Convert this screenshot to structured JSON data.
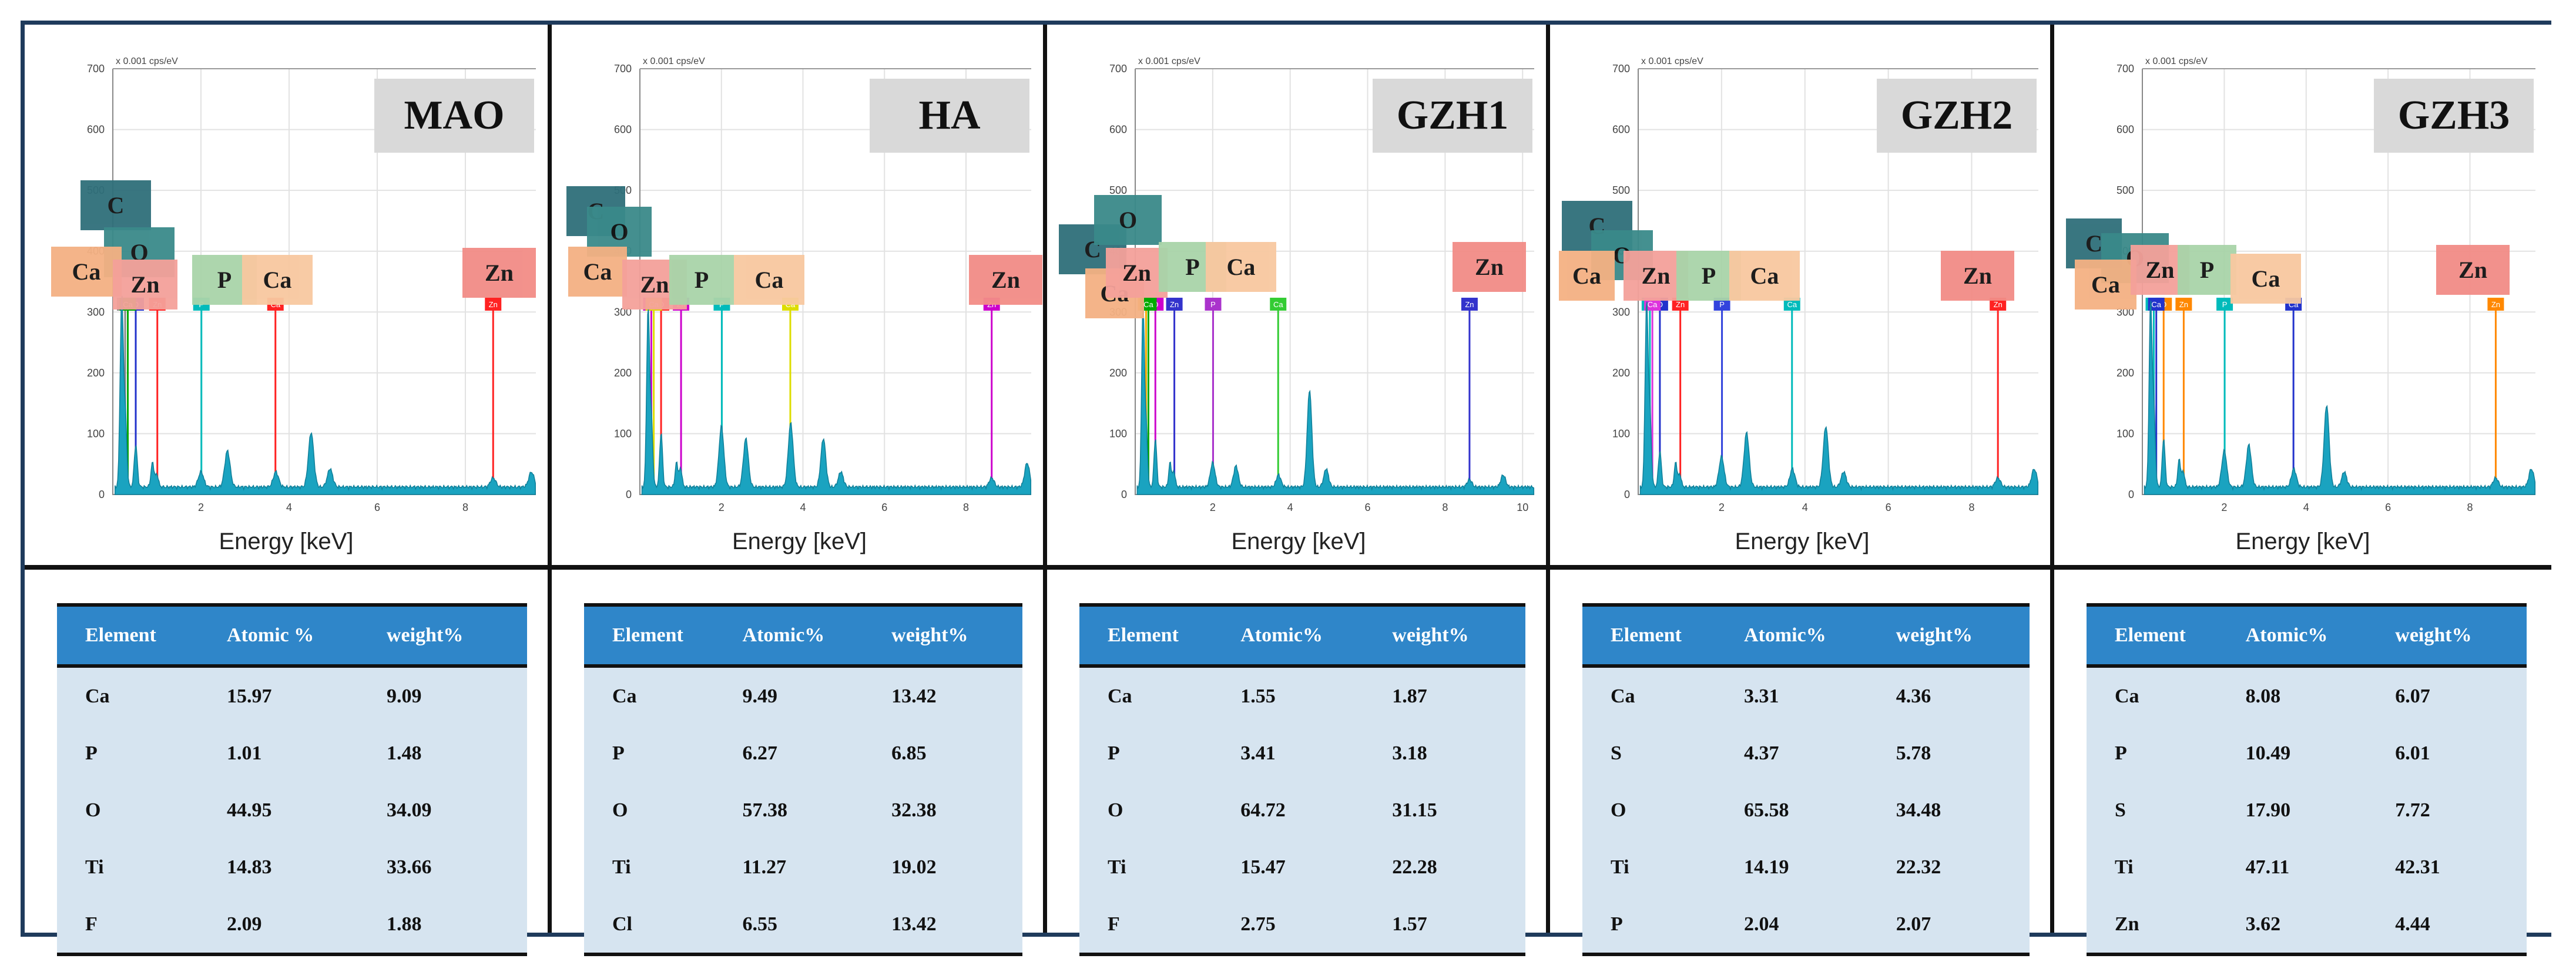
{
  "colors": {
    "frame": "#1f3b5c",
    "header": "#2f86c9",
    "cell": "#d6e4f0",
    "spectrum": "#1aa3c0"
  },
  "chart_data": [
    {
      "type": "area",
      "title": "MAO",
      "xlabel": "Energy [keV]",
      "ylabel": "x 0.001 cps/eV",
      "xlim": [
        0,
        9.6
      ],
      "ylim": [
        0,
        700
      ],
      "yticks": [
        0,
        100,
        200,
        300,
        400,
        500,
        600,
        700
      ],
      "xticks": [
        2,
        4,
        6,
        8
      ],
      "series": [
        {
          "name": "spectrum",
          "x": [
            0.2,
            0.28,
            0.52,
            0.9,
            1.0,
            2.0,
            2.6,
            3.7,
            4.5,
            4.93,
            8.63,
            9.5
          ],
          "y": [
            310,
            120,
            70,
            40,
            20,
            25,
            60,
            25,
            90,
            30,
            15,
            25
          ]
        }
      ],
      "markers": [
        {
          "label": "C",
          "energy": 0.28,
          "color": "#888888"
        },
        {
          "label": "O",
          "energy": 0.52,
          "color": "#2233cc"
        },
        {
          "label": "Ca",
          "energy": 0.34,
          "color": "#00aa00"
        },
        {
          "label": "Zn",
          "energy": 1.01,
          "color": "#ff2222"
        },
        {
          "label": "P",
          "energy": 2.01,
          "color": "#00bbbb"
        },
        {
          "label": "Ca",
          "energy": 3.69,
          "color": "#ff2222"
        },
        {
          "label": "Zn",
          "energy": 8.63,
          "color": "#ff2222"
        }
      ],
      "element_boxes": [
        {
          "label": "C",
          "color": "#2f6f7a"
        },
        {
          "label": "O",
          "color": "#3a8a8a"
        },
        {
          "label": "Ca",
          "color": "#f4b183"
        },
        {
          "label": "Zn",
          "color": "#f4a19a"
        },
        {
          "label": "P",
          "color": "#a9d4a9"
        },
        {
          "label": "Ca",
          "color": "#f8c8a0"
        },
        {
          "label": "Zn",
          "color": "#f28c86"
        }
      ]
    },
    {
      "type": "area",
      "title": "HA",
      "xlabel": "Energy [keV]",
      "ylabel": "x 0.001 cps/eV",
      "xlim": [
        0,
        9.6
      ],
      "ylim": [
        0,
        700
      ],
      "yticks": [
        0,
        100,
        200,
        300,
        400,
        500,
        600,
        700
      ],
      "xticks": [
        2,
        4,
        6,
        8
      ],
      "series": [
        {
          "name": "spectrum",
          "x": [
            0.2,
            0.28,
            0.52,
            0.9,
            1.0,
            2.0,
            2.6,
            3.7,
            4.5,
            4.93,
            8.63,
            9.5
          ],
          "y": [
            290,
            110,
            90,
            40,
            30,
            100,
            80,
            105,
            80,
            25,
            15,
            40
          ]
        }
      ],
      "markers": [
        {
          "label": "C",
          "energy": 0.28,
          "color": "#cc00cc"
        },
        {
          "label": "O",
          "energy": 0.52,
          "color": "#ff2222"
        },
        {
          "label": "Ca",
          "energy": 0.34,
          "color": "#dddd00"
        },
        {
          "label": "Zn",
          "energy": 1.01,
          "color": "#cc00cc"
        },
        {
          "label": "P",
          "energy": 2.01,
          "color": "#00bbbb"
        },
        {
          "label": "Ca",
          "energy": 3.69,
          "color": "#dddd00"
        },
        {
          "label": "Zn",
          "energy": 8.63,
          "color": "#cc00cc"
        }
      ],
      "element_boxes": [
        {
          "label": "C",
          "color": "#2f6f7a"
        },
        {
          "label": "O",
          "color": "#3a8a8a"
        },
        {
          "label": "Ca",
          "color": "#f4b183"
        },
        {
          "label": "Zn",
          "color": "#f4a19a"
        },
        {
          "label": "P",
          "color": "#a9d4a9"
        },
        {
          "label": "Ca",
          "color": "#f8c8a0"
        },
        {
          "label": "Zn",
          "color": "#f28c86"
        }
      ]
    },
    {
      "type": "area",
      "title": "GZH1",
      "xlabel": "Energy [keV]",
      "ylabel": "x 0.001 cps/eV",
      "xlim": [
        0,
        10.3
      ],
      "ylim": [
        0,
        700
      ],
      "yticks": [
        0,
        100,
        200,
        300,
        400,
        500,
        600,
        700
      ],
      "xticks": [
        2,
        4,
        6,
        8,
        10
      ],
      "series": [
        {
          "name": "spectrum",
          "x": [
            0.2,
            0.28,
            0.52,
            0.9,
            1.0,
            2.0,
            2.6,
            3.7,
            4.5,
            4.93,
            8.63,
            9.5
          ],
          "y": [
            300,
            100,
            80,
            40,
            25,
            40,
            35,
            20,
            160,
            30,
            12,
            20
          ]
        }
      ],
      "markers": [
        {
          "label": "C",
          "energy": 0.28,
          "color": "#ffaa00"
        },
        {
          "label": "O",
          "energy": 0.52,
          "color": "#cc00cc"
        },
        {
          "label": "Ca",
          "energy": 0.34,
          "color": "#00aa00"
        },
        {
          "label": "Zn",
          "energy": 1.01,
          "color": "#3333cc"
        },
        {
          "label": "P",
          "energy": 2.01,
          "color": "#aa33cc"
        },
        {
          "label": "Ca",
          "energy": 3.69,
          "color": "#33cc33"
        },
        {
          "label": "Zn",
          "energy": 8.63,
          "color": "#3333cc"
        }
      ],
      "element_boxes": [
        {
          "label": "C",
          "color": "#2f6f7a"
        },
        {
          "label": "O",
          "color": "#3a8a8a"
        },
        {
          "label": "Ca",
          "color": "#f4b183"
        },
        {
          "label": "Zn",
          "color": "#f4a19a"
        },
        {
          "label": "P",
          "color": "#a9d4a9"
        },
        {
          "label": "Ca",
          "color": "#f8c8a0"
        },
        {
          "label": "Zn",
          "color": "#f28c86"
        }
      ]
    },
    {
      "type": "area",
      "title": "GZH2",
      "xlabel": "Energy [keV]",
      "ylabel": "x 0.001 cps/eV",
      "xlim": [
        0,
        9.6
      ],
      "ylim": [
        0,
        700
      ],
      "yticks": [
        0,
        100,
        200,
        300,
        400,
        500,
        600,
        700
      ],
      "xticks": [
        2,
        4,
        6,
        8
      ],
      "series": [
        {
          "name": "spectrum",
          "x": [
            0.2,
            0.28,
            0.52,
            0.9,
            1.0,
            2.0,
            2.6,
            3.7,
            4.5,
            4.93,
            8.63,
            9.5
          ],
          "y": [
            300,
            120,
            60,
            40,
            20,
            50,
            90,
            30,
            100,
            25,
            15,
            30
          ]
        }
      ],
      "markers": [
        {
          "label": "C",
          "energy": 0.28,
          "color": "#00bbbb"
        },
        {
          "label": "O",
          "energy": 0.52,
          "color": "#2233cc"
        },
        {
          "label": "Ca",
          "energy": 0.34,
          "color": "#dd33dd"
        },
        {
          "label": "Zn",
          "energy": 1.01,
          "color": "#ff2222"
        },
        {
          "label": "P",
          "energy": 2.01,
          "color": "#3344dd"
        },
        {
          "label": "Ca",
          "energy": 3.69,
          "color": "#00bbbb"
        },
        {
          "label": "Zn",
          "energy": 8.63,
          "color": "#ff2222"
        }
      ],
      "element_boxes": [
        {
          "label": "C",
          "color": "#2f6f7a"
        },
        {
          "label": "O",
          "color": "#3a8a8a"
        },
        {
          "label": "Ca",
          "color": "#f4b183"
        },
        {
          "label": "Zn",
          "color": "#f4a19a"
        },
        {
          "label": "P",
          "color": "#a9d4a9"
        },
        {
          "label": "Ca",
          "color": "#f8c8a0"
        },
        {
          "label": "Zn",
          "color": "#f28c86"
        }
      ]
    },
    {
      "type": "area",
      "title": "GZH3",
      "xlabel": "Energy [keV]",
      "ylabel": "x 0.001 cps/eV",
      "xlim": [
        0,
        9.6
      ],
      "ylim": [
        0,
        700
      ],
      "yticks": [
        0,
        100,
        200,
        300,
        400,
        500,
        600,
        700
      ],
      "xticks": [
        2,
        4,
        6,
        8
      ],
      "series": [
        {
          "name": "spectrum",
          "x": [
            0.2,
            0.28,
            0.52,
            0.9,
            1.0,
            2.0,
            2.6,
            3.7,
            4.5,
            4.93,
            8.63,
            9.5
          ],
          "y": [
            300,
            130,
            80,
            45,
            25,
            60,
            70,
            30,
            135,
            25,
            15,
            30
          ]
        }
      ],
      "markers": [
        {
          "label": "C",
          "energy": 0.28,
          "color": "#00bbbb"
        },
        {
          "label": "O",
          "energy": 0.52,
          "color": "#ff8800"
        },
        {
          "label": "Ca",
          "energy": 0.34,
          "color": "#2233cc"
        },
        {
          "label": "Zn",
          "energy": 1.01,
          "color": "#ff8800"
        },
        {
          "label": "P",
          "energy": 2.01,
          "color": "#00bbbb"
        },
        {
          "label": "Ca",
          "energy": 3.69,
          "color": "#2233cc"
        },
        {
          "label": "Zn",
          "energy": 8.63,
          "color": "#ff8800"
        }
      ],
      "element_boxes": [
        {
          "label": "C",
          "color": "#2f6f7a"
        },
        {
          "label": "O",
          "color": "#3a8a8a"
        },
        {
          "label": "Ca",
          "color": "#f4b183"
        },
        {
          "label": "Zn",
          "color": "#f4a19a"
        },
        {
          "label": "P",
          "color": "#a9d4a9"
        },
        {
          "label": "Ca",
          "color": "#f8c8a0"
        },
        {
          "label": "Zn",
          "color": "#f28c86"
        }
      ]
    }
  ],
  "tables": [
    {
      "headers": [
        "Element",
        "Atomic %",
        "weight%"
      ],
      "rows": [
        [
          "Ca",
          "15.97",
          "9.09"
        ],
        [
          "P",
          "1.01",
          "1.48"
        ],
        [
          "O",
          "44.95",
          "34.09"
        ],
        [
          "Ti",
          "14.83",
          "33.66"
        ],
        [
          "F",
          "2.09",
          "1.88"
        ]
      ]
    },
    {
      "headers": [
        "Element",
        "Atomic%",
        "weight%"
      ],
      "rows": [
        [
          "Ca",
          "9.49",
          "13.42"
        ],
        [
          "P",
          "6.27",
          "6.85"
        ],
        [
          "O",
          "57.38",
          "32.38"
        ],
        [
          "Ti",
          "11.27",
          "19.02"
        ],
        [
          "Cl",
          "6.55",
          "13.42"
        ]
      ]
    },
    {
      "headers": [
        "Element",
        "Atomic%",
        "weight%"
      ],
      "rows": [
        [
          "Ca",
          "1.55",
          "1.87"
        ],
        [
          "P",
          "3.41",
          "3.18"
        ],
        [
          "O",
          "64.72",
          "31.15"
        ],
        [
          "Ti",
          "15.47",
          "22.28"
        ],
        [
          "F",
          "2.75",
          "1.57"
        ]
      ]
    },
    {
      "headers": [
        "Element",
        "Atomic%",
        "weight%"
      ],
      "rows": [
        [
          "Ca",
          "3.31",
          "4.36"
        ],
        [
          "S",
          "4.37",
          "5.78"
        ],
        [
          "O",
          "65.58",
          "34.48"
        ],
        [
          "Ti",
          "14.19",
          "22.32"
        ],
        [
          "P",
          "2.04",
          "2.07"
        ]
      ]
    },
    {
      "headers": [
        "Element",
        "Atomic%",
        "weight%"
      ],
      "rows": [
        [
          "Ca",
          "8.08",
          "6.07"
        ],
        [
          "P",
          "10.49",
          "6.01"
        ],
        [
          "S",
          "17.90",
          "7.72"
        ],
        [
          "Ti",
          "47.11",
          "42.31"
        ],
        [
          "Zn",
          "3.62",
          "4.44"
        ]
      ]
    }
  ]
}
